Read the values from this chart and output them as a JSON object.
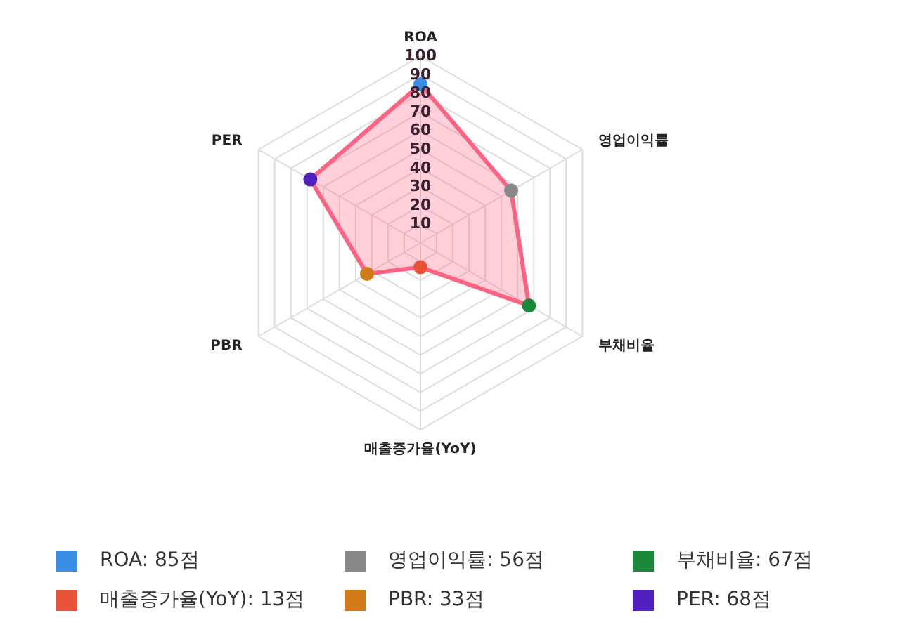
{
  "chart_data": {
    "type": "radar",
    "categories": [
      "ROA",
      "영업이익률",
      "부채비율",
      "매출증가율(YoY)",
      "PBR",
      "PER"
    ],
    "series": [
      {
        "color": "#ff6384",
        "colors": [
          "#3a8ee6",
          "#888888",
          "#1a8a3a",
          "#e8533a",
          "#d07a1a",
          "#5020c0"
        ],
        "values": [
          85,
          56,
          67,
          13,
          33,
          68
        ]
      }
    ],
    "annotations": [
      "ROA: 85점",
      "영업이익률: 56점",
      "부채비율: 67점",
      "매출증가율(YoY): 13점",
      "PBR: 33점",
      "PER: 68점"
    ],
    "ylim": [
      0,
      100
    ],
    "yticks": [
      10,
      20,
      30,
      40,
      50,
      60,
      70,
      80,
      90,
      100
    ],
    "grid": true,
    "marker": "circle"
  }
}
